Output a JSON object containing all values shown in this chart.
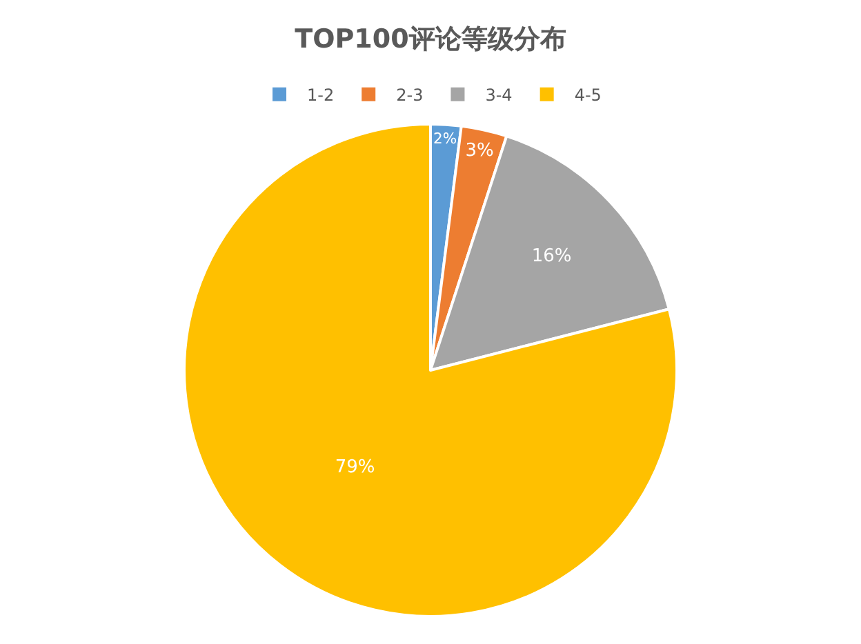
{
  "chart_data": {
    "type": "pie",
    "title": "TOP100评论等级分布",
    "categories": [
      "1-2",
      "2-3",
      "3-4",
      "4-5"
    ],
    "values": [
      2,
      3,
      16,
      79
    ],
    "colors": [
      "#5b9bd5",
      "#ed7d31",
      "#a5a5a5",
      "#ffc000"
    ],
    "value_labels": [
      "2%",
      "3%",
      "16%",
      "79%"
    ],
    "legend": "top"
  }
}
